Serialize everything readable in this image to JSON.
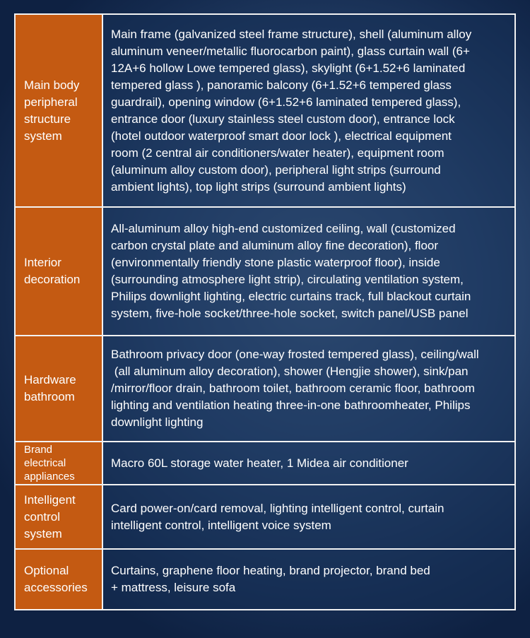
{
  "rows": [
    {
      "label": "Main body\nperipheral\nstructure\nsystem",
      "content": "Main frame (galvanized steel frame structure), shell (aluminum alloy\naluminum veneer/metallic fluorocarbon paint), glass curtain wall (6+\n12A+6 hollow Lowe tempered glass), skylight (6+1.52+6 laminated\ntempered glass ), panoramic balcony (6+1.52+6 tempered glass\nguardrail), opening window (6+1.52+6 laminated tempered glass),\nentrance door (luxury stainless steel custom door), entrance lock\n(hotel outdoor waterproof smart door lock ), electrical equipment\nroom (2 central air conditioners/water heater), equipment room\n(aluminum alloy custom door), peripheral light strips (surround\nambient lights), top light strips (surround ambient lights)"
    },
    {
      "label": "Interior\ndecoration",
      "content": "All-aluminum alloy high-end customized ceiling, wall (customized\ncarbon crystal plate and aluminum alloy fine decoration), floor\n(environmentally friendly stone plastic waterproof floor), inside\n(surrounding atmosphere light strip), circulating ventilation system,\nPhilips downlight lighting, electric curtains track, full blackout curtain\nsystem, five-hole socket/three-hole socket, switch panel/USB panel"
    },
    {
      "label": "Hardware\nbathroom",
      "content": "Bathroom privacy door (one-way frosted tempered glass), ceiling/wall\n (all aluminum alloy decoration), shower (Hengjie shower), sink/pan\n/mirror/floor drain, bathroom toilet, bathroom ceramic floor, bathroom\nlighting and ventilation heating three-in-one bathroomheater, Philips\ndownlight lighting"
    },
    {
      "label": "Brand\nelectrical\nappliances",
      "content": "Macro 60L storage water heater, 1 Midea air conditioner"
    },
    {
      "label": "Intelligent\ncontrol\nsystem",
      "content": "Card power-on/card removal, lighting intelligent control, curtain\nintelligent control, intelligent voice system"
    },
    {
      "label": "Optional\naccessories",
      "content": "Curtains, graphene floor heating, brand projector, brand bed\n+ mattress, leisure sofa"
    }
  ],
  "colors": {
    "label_bg": "#c45a12",
    "border": "#f2f2f2",
    "background": "#2c4a74"
  }
}
